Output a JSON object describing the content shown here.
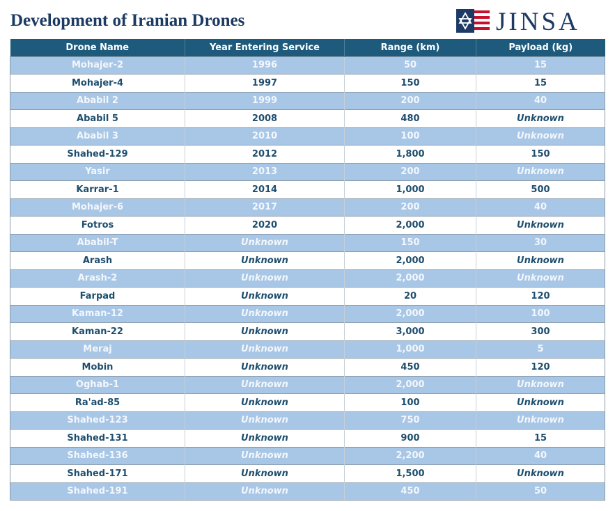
{
  "page": {
    "title": "Development of Iranian Drones",
    "logo_text": "JINSA"
  },
  "colors": {
    "header_bg": "#1e5a7c",
    "band_row": "#a8c6e6",
    "title_text": "#1c3a63",
    "logo_red": "#c8102e"
  },
  "icons": {
    "logo": "jinsa-star-flag-icon"
  },
  "table": {
    "headers": [
      "Drone Name",
      "Year Entering Service",
      "Range (km)",
      "Payload (kg)"
    ],
    "rows": [
      [
        "Mohajer-2",
        "1996",
        "50",
        "15"
      ],
      [
        "Mohajer-4",
        "1997",
        "150",
        "15"
      ],
      [
        "Ababil 2",
        "1999",
        "200",
        "40"
      ],
      [
        "Ababil 5",
        "2008",
        "480",
        "Unknown"
      ],
      [
        "Ababil 3",
        "2010",
        "100",
        "Unknown"
      ],
      [
        "Shahed-129",
        "2012",
        "1,800",
        "150"
      ],
      [
        "Yasir",
        "2013",
        "200",
        "Unknown"
      ],
      [
        "Karrar-1",
        "2014",
        "1,000",
        "500"
      ],
      [
        "Mohajer-6",
        "2017",
        "200",
        "40"
      ],
      [
        "Fotros",
        "2020",
        "2,000",
        "Unknown"
      ],
      [
        "Ababil-T",
        "Unknown",
        "150",
        "30"
      ],
      [
        "Arash",
        "Unknown",
        "2,000",
        "Unknown"
      ],
      [
        "Arash-2",
        "Unknown",
        "2,000",
        "Unknown"
      ],
      [
        "Farpad",
        "Unknown",
        "20",
        "120"
      ],
      [
        "Kaman-12",
        "Unknown",
        "2,000",
        "100"
      ],
      [
        "Kaman-22",
        "Unknown",
        "3,000",
        "300"
      ],
      [
        "Meraj",
        "Unknown",
        "1,000",
        "5"
      ],
      [
        "Mobin",
        "Unknown",
        "450",
        "120"
      ],
      [
        "Oghab-1",
        "Unknown",
        "2,000",
        "Unknown"
      ],
      [
        "Ra'ad-85",
        "Unknown",
        "100",
        "Unknown"
      ],
      [
        "Shahed-123",
        "Unknown",
        "750",
        "Unknown"
      ],
      [
        "Shahed-131",
        "Unknown",
        "900",
        "15"
      ],
      [
        "Shahed-136",
        "Unknown",
        "2,200",
        "40"
      ],
      [
        "Shahed-171",
        "Unknown",
        "1,500",
        "Unknown"
      ],
      [
        "Shahed-191",
        "Unknown",
        "450",
        "50"
      ]
    ]
  }
}
